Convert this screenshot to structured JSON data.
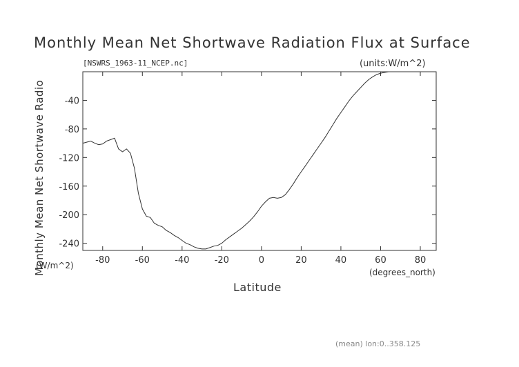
{
  "chart_data": {
    "type": "line",
    "title": "Monthly Mean Net Shortwave Radiation Flux at Surface",
    "subtitle": "[NSWRS_1963-11_NCEP.nc]",
    "units_label": "(units:W/m^2)",
    "xlabel": "Latitude",
    "xunits": "(degrees_north)",
    "ylabel": "Monthly Mean Net Shortwave Radio",
    "yunits": "(W/m^2)",
    "footnote": "(mean) lon:0..358.125",
    "xlim": [
      -90,
      88
    ],
    "ylim": [
      -250,
      0
    ],
    "xticks": [
      -80,
      -60,
      -40,
      -20,
      0,
      20,
      40,
      60,
      80
    ],
    "yticks": [
      -40,
      -80,
      -120,
      -160,
      -200,
      -240
    ],
    "series": [
      {
        "x": [
          -90,
          -86,
          -84,
          -82,
          -80,
          -78,
          -76,
          -74,
          -72,
          -70,
          -68,
          -66,
          -64,
          -62,
          -60,
          -58,
          -56,
          -54,
          -52,
          -50,
          -48,
          -46,
          -44,
          -42,
          -40,
          -38,
          -36,
          -34,
          -32,
          -30,
          -28,
          -26,
          -24,
          -22,
          -20,
          -18,
          -16,
          -14,
          -12,
          -10,
          -8,
          -6,
          -4,
          -2,
          0,
          2,
          4,
          6,
          8,
          10,
          12,
          14,
          16,
          18,
          20,
          22,
          24,
          26,
          28,
          30,
          32,
          34,
          36,
          38,
          40,
          42,
          44,
          46,
          48,
          50,
          52,
          54,
          56,
          58,
          60,
          62,
          64,
          66,
          68,
          70,
          72,
          74,
          76,
          78,
          80,
          82,
          84,
          86,
          88
        ],
        "values": [
          -100,
          -97,
          -100,
          -102,
          -101,
          -97,
          -95,
          -93,
          -108,
          -112,
          -108,
          -114,
          -135,
          -170,
          -192,
          -202,
          -204,
          -212,
          -215,
          -217,
          -222,
          -225,
          -229,
          -232,
          -236,
          -240,
          -242,
          -245,
          -247,
          -248,
          -248,
          -246,
          -244,
          -243,
          -240,
          -235,
          -231,
          -227,
          -223,
          -219,
          -214,
          -209,
          -203,
          -196,
          -188,
          -182,
          -177,
          -176,
          -177,
          -176,
          -172,
          -165,
          -157,
          -148,
          -140,
          -132,
          -124,
          -116,
          -108,
          -100,
          -92,
          -83,
          -74,
          -65,
          -57,
          -49,
          -41,
          -34,
          -28,
          -22,
          -16,
          -11,
          -7,
          -4,
          -2,
          -1,
          0,
          0,
          0,
          0,
          0,
          0,
          0,
          0,
          0,
          0,
          0,
          0,
          0
        ]
      }
    ],
    "grid": false
  }
}
